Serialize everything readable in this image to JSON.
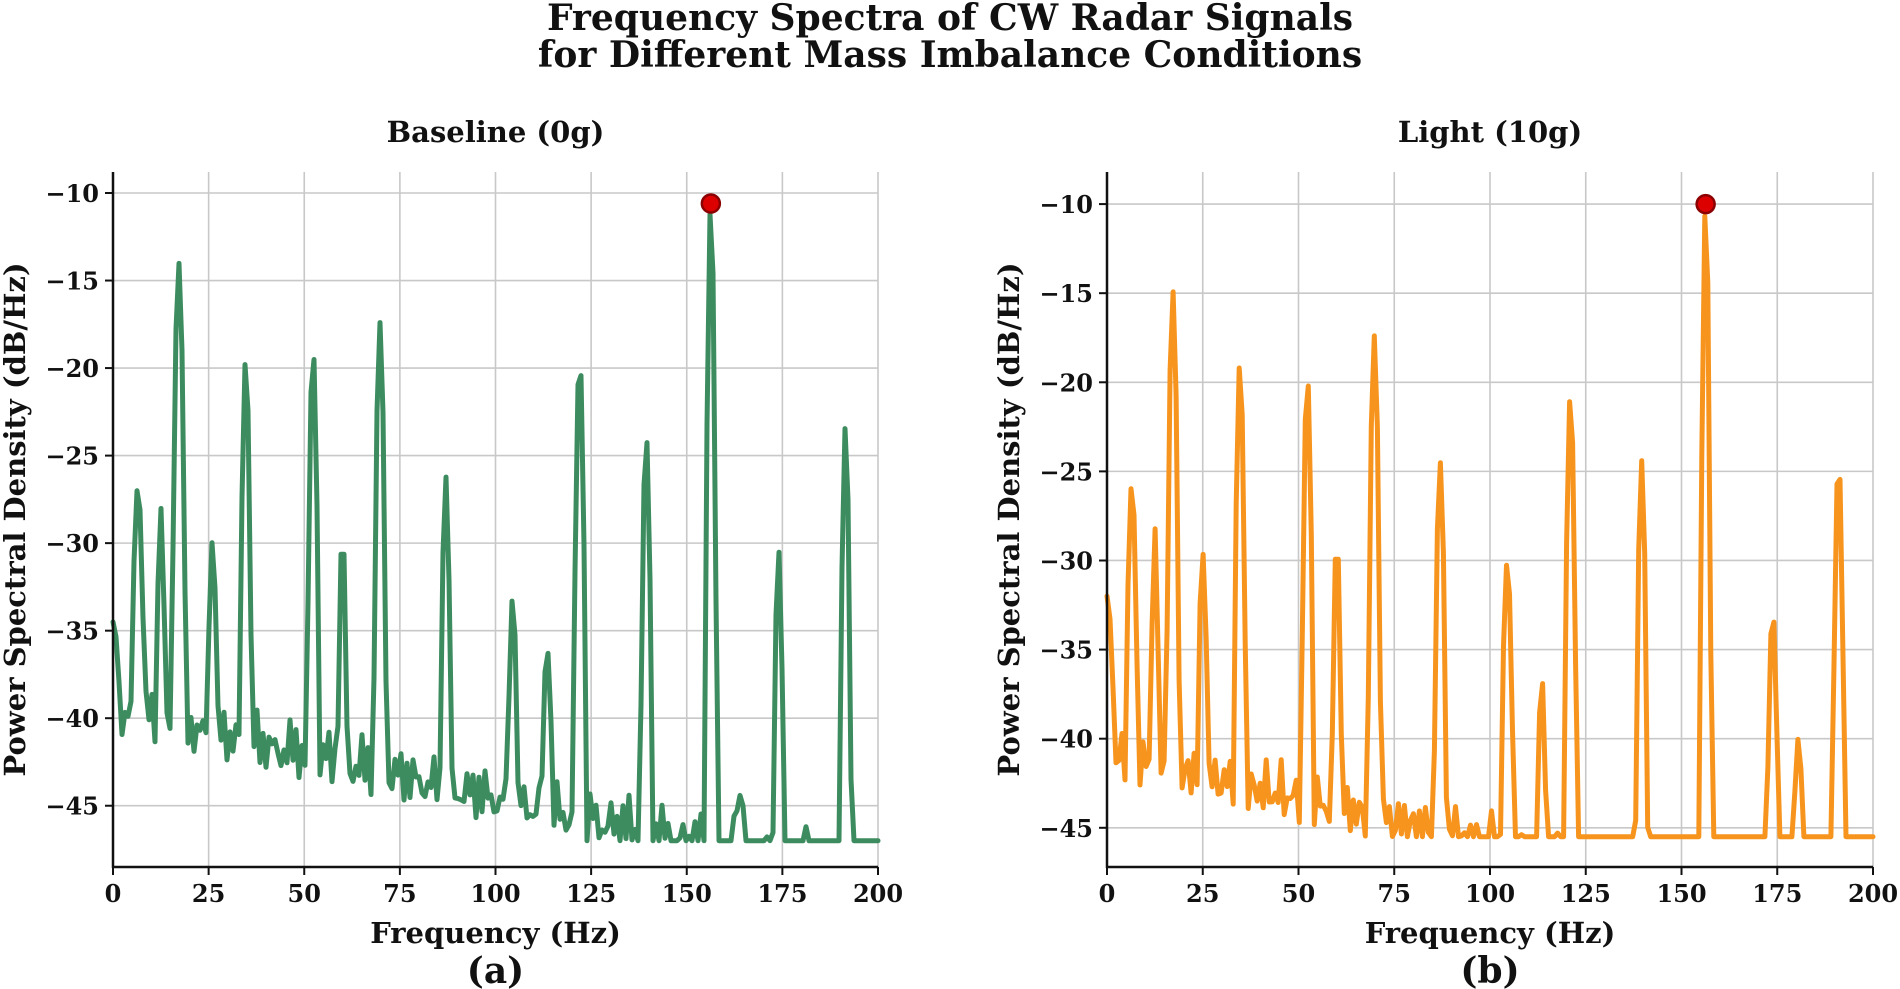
{
  "figure_title_line1": "Frequency Spectra of CW Radar Signals",
  "figure_title_line2": "for Different Mass Imbalance Conditions",
  "colors": {
    "baseline": "#3d8c5f",
    "light": "#f7941d",
    "peak": "#dd0000",
    "peak_edge": "#8b0000",
    "grid": "#c8c8c8"
  },
  "chart_data": [
    {
      "type": "line",
      "panel_label": "(a)",
      "title": "Baseline (0g)",
      "xlabel": "Frequency (Hz)",
      "ylabel": "Power Spectral Density (dB/Hz)",
      "xlim": [
        0,
        200
      ],
      "ylim": [
        -48.5,
        -8.8
      ],
      "xticks": [
        0,
        25,
        50,
        75,
        100,
        125,
        150,
        175,
        200
      ],
      "yticks": [
        -10,
        -15,
        -20,
        -25,
        -30,
        -35,
        -40,
        -45
      ],
      "series": [
        {
          "name": "Baseline (0g)",
          "x": [],
          "y": []
        }
      ],
      "peak_marker": {
        "x": 156.3,
        "y": -10.6
      }
    },
    {
      "type": "line",
      "panel_label": "(b)",
      "title": "Light (10g)",
      "xlabel": "Frequency (Hz)",
      "ylabel": "Power Spectral Density (dB/Hz)",
      "xlim": [
        0,
        200
      ],
      "ylim": [
        -47.2,
        -8.2
      ],
      "xticks": [
        0,
        25,
        50,
        75,
        100,
        125,
        150,
        175,
        200
      ],
      "yticks": [
        -10,
        -15,
        -20,
        -25,
        -30,
        -35,
        -40,
        -45
      ],
      "series": [
        {
          "name": "Light (10g)",
          "x": [],
          "y": []
        }
      ],
      "peak_marker": {
        "x": 156.3,
        "y": -10.0
      }
    }
  ]
}
